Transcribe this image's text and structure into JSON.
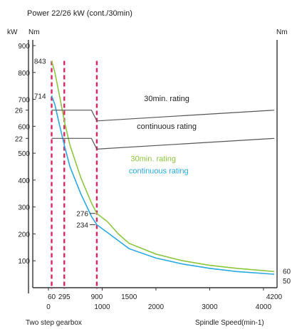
{
  "chart_data": {
    "type": "line",
    "title": "Power 22/26 kW (cont./30min)",
    "y_unit_left_power": "kW",
    "y_unit_left_torque": "Nm",
    "y_unit_right": "Nm",
    "xlabel": "Spindle Speed(min-1)",
    "x_sublabel": "Two step gearbox",
    "xlim": [
      0,
      4200
    ],
    "ylim": [
      0,
      900
    ],
    "x_ticks": [
      0,
      1000,
      2000,
      3000,
      4000
    ],
    "x_tick_labels": [
      "0",
      "1000",
      "2000",
      "3000",
      "4000"
    ],
    "x_top_ticks": [
      60,
      295,
      900,
      1500,
      4200
    ],
    "x_top_tick_labels": [
      "60",
      "295",
      "900",
      "1500",
      "4200"
    ],
    "y_ticks": [
      100,
      200,
      300,
      400,
      500,
      600,
      700,
      800,
      900
    ],
    "y_tick_labels": [
      "100",
      "200",
      "300",
      "400",
      "500",
      "600",
      "700",
      "800",
      "900"
    ],
    "power_ticks": [
      {
        "label": "26",
        "torque_equiv": 660
      },
      {
        "label": "22",
        "torque_equiv": 555
      }
    ],
    "annotations": [
      {
        "label": "843",
        "x": 60,
        "y": 843
      },
      {
        "label": "714",
        "x": 60,
        "y": 714
      },
      {
        "label": "276",
        "x": 900,
        "y": 276
      },
      {
        "label": "234",
        "x": 900,
        "y": 234
      }
    ],
    "right_end_labels": [
      "60",
      "50"
    ],
    "dashed_lines_x": [
      60,
      295,
      900
    ],
    "series": [
      {
        "name": "30min. rating",
        "kind": "torque",
        "color": "#8cc63f",
        "x": [
          60,
          120,
          200,
          295,
          400,
          600,
          800,
          900,
          1100,
          1300,
          1500,
          2000,
          2500,
          3000,
          3500,
          4200
        ],
        "y": [
          843,
          800,
          720,
          620,
          530,
          410,
          315,
          276,
          245,
          200,
          165,
          125,
          100,
          83,
          72,
          60
        ]
      },
      {
        "name": "continuous rating",
        "kind": "torque",
        "color": "#29a9e0",
        "x": [
          60,
          120,
          200,
          295,
          400,
          600,
          800,
          900,
          1100,
          1300,
          1500,
          2000,
          2500,
          3000,
          3500,
          4200
        ],
        "y": [
          714,
          680,
          610,
          530,
          450,
          350,
          265,
          234,
          205,
          175,
          145,
          110,
          88,
          72,
          60,
          50
        ]
      },
      {
        "name": "30min. rating",
        "kind": "power",
        "color": "#555555",
        "x": [
          60,
          800,
          900,
          4200
        ],
        "y": [
          660,
          660,
          620,
          660
        ]
      },
      {
        "name": "continuous rating",
        "kind": "power",
        "color": "#555555",
        "x": [
          60,
          800,
          900,
          4200
        ],
        "y": [
          555,
          555,
          515,
          555
        ]
      }
    ],
    "colors": {
      "dashed": "#e0245e",
      "axis": "#333333",
      "text": "#222222"
    }
  }
}
